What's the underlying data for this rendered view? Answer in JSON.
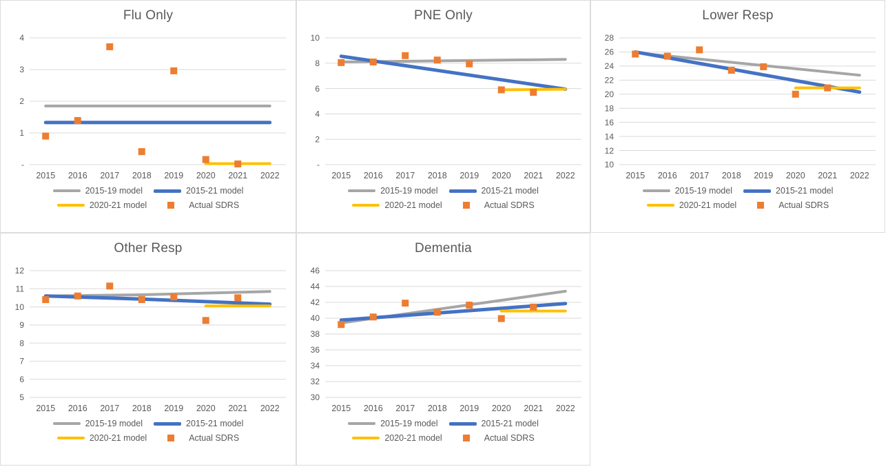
{
  "page": {
    "background": "#ffffff",
    "cell_border_color": "#dcdcdc"
  },
  "colors": {
    "gray": "#A6A6A6",
    "blue": "#4472C4",
    "yellow": "#FFC000",
    "orange": "#ED7D31",
    "gridline": "#D9D9D9",
    "text": "#595959"
  },
  "chart_data": [
    {
      "type": "line",
      "title": "Flu Only",
      "categories": [
        "2015",
        "2016",
        "2017",
        "2018",
        "2019",
        "2020",
        "2021",
        "2022"
      ],
      "ylim": [
        0,
        4
      ],
      "ytick_labels": [
        "-",
        "1",
        "2",
        "3",
        "4"
      ],
      "grid": true,
      "legend_position": "bottom",
      "series": [
        {
          "name": "2015-19 model",
          "color_key": "gray",
          "style": "line",
          "points": [
            [
              0,
              1.85
            ],
            [
              7,
              1.85
            ]
          ]
        },
        {
          "name": "2015-21 model",
          "color_key": "blue",
          "style": "line",
          "points": [
            [
              0,
              1.33
            ],
            [
              7,
              1.33
            ]
          ]
        },
        {
          "name": "2020-21 model",
          "color_key": "yellow",
          "style": "line",
          "points": [
            [
              5,
              0.03
            ],
            [
              7,
              0.03
            ]
          ]
        },
        {
          "name": "Actual SDRS",
          "color_key": "orange",
          "style": "scatter",
          "points": [
            [
              0,
              0.9
            ],
            [
              1,
              1.39
            ],
            [
              2,
              3.72
            ],
            [
              3,
              0.41
            ],
            [
              4,
              2.96
            ],
            [
              5,
              0.16
            ],
            [
              6,
              0.02
            ]
          ]
        }
      ]
    },
    {
      "type": "line",
      "title": "PNE Only",
      "categories": [
        "2015",
        "2016",
        "2017",
        "2018",
        "2019",
        "2020",
        "2021",
        "2022"
      ],
      "ylim": [
        0,
        10
      ],
      "ytick_labels": [
        "-",
        "2",
        "4",
        "6",
        "8",
        "10"
      ],
      "grid": true,
      "legend_position": "bottom",
      "series": [
        {
          "name": "2015-19 model",
          "color_key": "gray",
          "style": "line",
          "points": [
            [
              0,
              8.1
            ],
            [
              7,
              8.3
            ]
          ]
        },
        {
          "name": "2015-21 model",
          "color_key": "blue",
          "style": "line",
          "points": [
            [
              0,
              8.55
            ],
            [
              7,
              5.95
            ]
          ]
        },
        {
          "name": "2020-21 model",
          "color_key": "yellow",
          "style": "line",
          "points": [
            [
              5,
              5.9
            ],
            [
              7,
              5.95
            ]
          ]
        },
        {
          "name": "Actual SDRS",
          "color_key": "orange",
          "style": "scatter",
          "points": [
            [
              0,
              8.05
            ],
            [
              1,
              8.1
            ],
            [
              2,
              8.6
            ],
            [
              3,
              8.25
            ],
            [
              4,
              7.95
            ],
            [
              5,
              5.9
            ],
            [
              6,
              5.7
            ]
          ]
        }
      ]
    },
    {
      "type": "line",
      "title": "Lower Resp",
      "categories": [
        "2015",
        "2016",
        "2017",
        "2018",
        "2019",
        "2020",
        "2021",
        "2022"
      ],
      "ylim": [
        10,
        28
      ],
      "ytick_labels": [
        "10",
        "12",
        "14",
        "16",
        "18",
        "20",
        "22",
        "24",
        "26",
        "28"
      ],
      "grid": true,
      "legend_position": "bottom",
      "series": [
        {
          "name": "2015-19 model",
          "color_key": "gray",
          "style": "line",
          "points": [
            [
              0,
              25.9
            ],
            [
              7,
              22.7
            ]
          ]
        },
        {
          "name": "2015-21 model",
          "color_key": "blue",
          "style": "line",
          "points": [
            [
              0,
              26.0
            ],
            [
              7,
              20.3
            ]
          ]
        },
        {
          "name": "2020-21 model",
          "color_key": "yellow",
          "style": "line",
          "points": [
            [
              5,
              20.9
            ],
            [
              7,
              20.9
            ]
          ]
        },
        {
          "name": "Actual SDRS",
          "color_key": "orange",
          "style": "scatter",
          "points": [
            [
              0,
              25.7
            ],
            [
              1,
              25.4
            ],
            [
              2,
              26.3
            ],
            [
              3,
              23.4
            ],
            [
              4,
              23.9
            ],
            [
              5,
              20.0
            ],
            [
              6,
              20.9
            ]
          ]
        }
      ]
    },
    {
      "type": "line",
      "title": "Other Resp",
      "categories": [
        "2015",
        "2016",
        "2017",
        "2018",
        "2019",
        "2020",
        "2021",
        "2022"
      ],
      "ylim": [
        5,
        12
      ],
      "ytick_labels": [
        "5",
        "6",
        "7",
        "8",
        "9",
        "10",
        "11",
        "12"
      ],
      "grid": true,
      "legend_position": "bottom",
      "series": [
        {
          "name": "2015-19 model",
          "color_key": "gray",
          "style": "line",
          "points": [
            [
              0,
              10.6
            ],
            [
              3,
              10.67
            ],
            [
              7,
              10.85
            ]
          ]
        },
        {
          "name": "2015-21 model",
          "color_key": "blue",
          "style": "line",
          "points": [
            [
              0,
              10.6
            ],
            [
              3,
              10.43
            ],
            [
              7,
              10.15
            ]
          ]
        },
        {
          "name": "2020-21 model",
          "color_key": "yellow",
          "style": "line",
          "points": [
            [
              5,
              10.05
            ],
            [
              7,
              10.05
            ]
          ]
        },
        {
          "name": "Actual SDRS",
          "color_key": "orange",
          "style": "scatter",
          "points": [
            [
              0,
              10.4
            ],
            [
              1,
              10.6
            ],
            [
              2,
              11.15
            ],
            [
              3,
              10.4
            ],
            [
              4,
              10.55
            ],
            [
              5,
              9.25
            ],
            [
              6,
              10.5
            ]
          ]
        }
      ]
    },
    {
      "type": "line",
      "title": "Dementia",
      "categories": [
        "2015",
        "2016",
        "2017",
        "2018",
        "2019",
        "2020",
        "2021",
        "2022"
      ],
      "ylim": [
        30,
        46
      ],
      "ytick_labels": [
        "30",
        "32",
        "34",
        "36",
        "38",
        "40",
        "42",
        "44",
        "46"
      ],
      "grid": true,
      "legend_position": "bottom",
      "series": [
        {
          "name": "2015-19 model",
          "color_key": "gray",
          "style": "line",
          "points": [
            [
              0,
              39.4
            ],
            [
              7,
              43.4
            ]
          ]
        },
        {
          "name": "2015-21 model",
          "color_key": "blue",
          "style": "line",
          "points": [
            [
              0,
              39.75
            ],
            [
              7,
              41.85
            ]
          ]
        },
        {
          "name": "2020-21 model",
          "color_key": "yellow",
          "style": "line",
          "points": [
            [
              5,
              40.9
            ],
            [
              7,
              40.9
            ]
          ]
        },
        {
          "name": "Actual SDRS",
          "color_key": "orange",
          "style": "scatter",
          "points": [
            [
              0,
              39.2
            ],
            [
              1,
              40.15
            ],
            [
              2,
              41.9
            ],
            [
              3,
              40.75
            ],
            [
              4,
              41.65
            ],
            [
              5,
              39.95
            ],
            [
              6,
              41.4
            ]
          ]
        }
      ]
    }
  ]
}
